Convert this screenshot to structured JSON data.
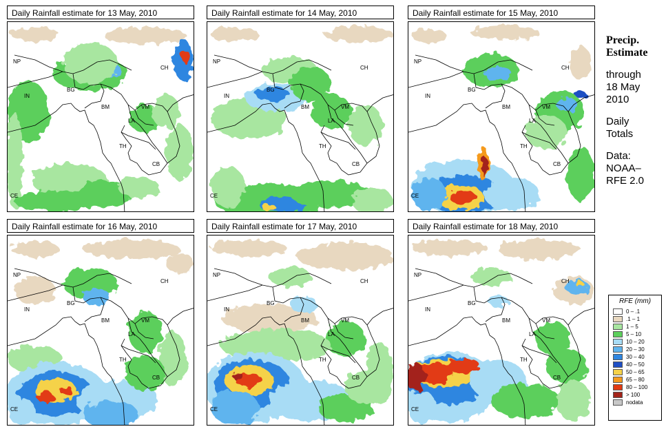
{
  "panels": [
    {
      "title": "Daily Rainfall estimate for  13 May, 2010",
      "key": "d13"
    },
    {
      "title": "Daily Rainfall estimate for  14 May, 2010",
      "key": "d14"
    },
    {
      "title": "Daily Rainfall estimate for  15 May, 2010",
      "key": "d15"
    },
    {
      "title": "Daily Rainfall estimate for  16 May, 2010",
      "key": "d16"
    },
    {
      "title": "Daily Rainfall estimate for  17 May, 2010",
      "key": "d17"
    },
    {
      "title": "Daily Rainfall estimate for  18 May, 2010",
      "key": "d18"
    }
  ],
  "country_labels": [
    "NP",
    "CH",
    "IN",
    "BG",
    "BM",
    "VM",
    "LA",
    "TH",
    "CB",
    "CE"
  ],
  "side": {
    "line1": "Precip.",
    "line2": "Estimate",
    "line3": "through",
    "line4": "18 May",
    "line5": "2010",
    "line6": "Daily",
    "line7": "Totals",
    "line8": "Data:",
    "line9": "NOAA–",
    "line10": "RFE 2.0"
  },
  "legend": {
    "title": "RFE (mm)",
    "items": [
      {
        "label": "0 – .1",
        "color": "#ffffff"
      },
      {
        "label": ".1 – 1",
        "color": "#e8d8c0"
      },
      {
        "label": "1 – 5",
        "color": "#a8e6a0"
      },
      {
        "label": "5 – 10",
        "color": "#5ccf5c"
      },
      {
        "label": "10 – 20",
        "color": "#a8dcf5"
      },
      {
        "label": "20 – 30",
        "color": "#5fb4ee"
      },
      {
        "label": "30 – 40",
        "color": "#2f86e0"
      },
      {
        "label": "40 – 50",
        "color": "#1f4fc4"
      },
      {
        "label": "50 – 65",
        "color": "#f5d24a"
      },
      {
        "label": "65 – 80",
        "color": "#f59a1e"
      },
      {
        "label": "80 – 100",
        "color": "#e23a12"
      },
      {
        "label": "> 100",
        "color": "#a3241a"
      },
      {
        "label": "nodata",
        "color": "#c8c8c8"
      }
    ]
  }
}
